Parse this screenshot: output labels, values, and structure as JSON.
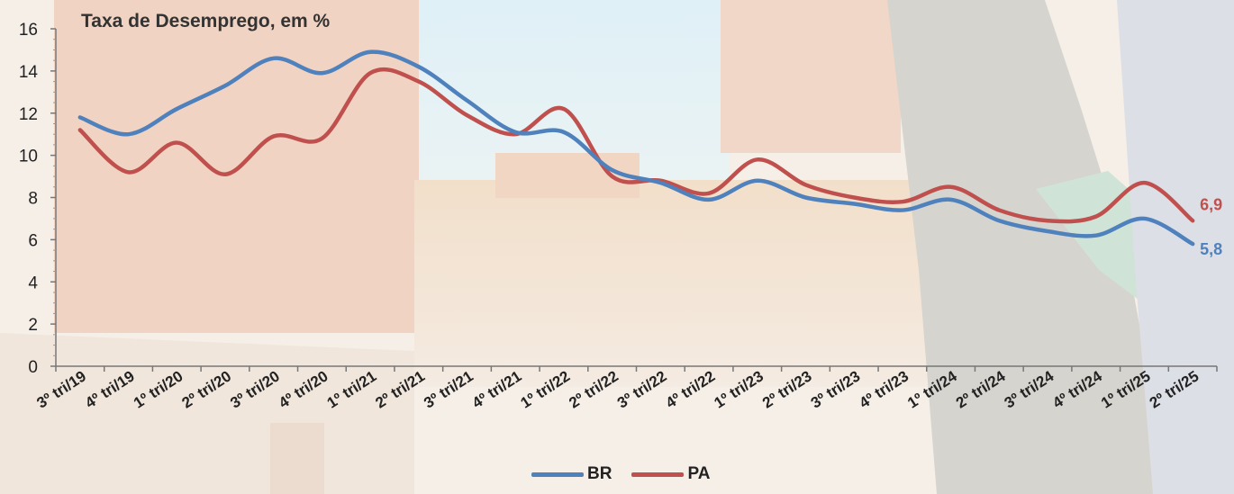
{
  "chart_data": {
    "type": "line",
    "title": "Taxa de Desemprego, em %",
    "xlabel": "",
    "ylabel": "",
    "ylim": [
      0,
      16
    ],
    "yticks": [
      0,
      2,
      4,
      6,
      8,
      10,
      12,
      14,
      16
    ],
    "grid": false,
    "legend_position": "bottom",
    "categories": [
      "3º tri/19",
      "4º tri/19",
      "1º tri/20",
      "2º tri/20",
      "3º tri/20",
      "4º tri/20",
      "1º tri/21",
      "2º tri/21",
      "3º tri/21",
      "4º tri/21",
      "1º tri/22",
      "2º tri/22",
      "3º tri/22",
      "4º tri/22",
      "1º tri/23",
      "2º tri/23",
      "3º tri/23",
      "4º tri/23",
      "1º tri/24",
      "2º tri/24",
      "3º tri/24",
      "4º tri/24",
      "1º tri/25",
      "2º tri/25"
    ],
    "series": [
      {
        "name": "BR",
        "color": "#4f81bd",
        "values": [
          11.8,
          11.0,
          12.2,
          13.3,
          14.6,
          13.9,
          14.9,
          14.2,
          12.6,
          11.1,
          11.1,
          9.3,
          8.7,
          7.9,
          8.8,
          8.0,
          7.7,
          7.4,
          7.9,
          6.9,
          6.4,
          6.2,
          7.0,
          5.8
        ],
        "end_label": "5,8"
      },
      {
        "name": "PA",
        "color": "#c0504d",
        "values": [
          11.2,
          9.2,
          10.6,
          9.1,
          10.9,
          10.8,
          13.9,
          13.5,
          11.9,
          11.0,
          12.2,
          9.0,
          8.8,
          8.2,
          9.8,
          8.6,
          8.0,
          7.8,
          8.5,
          7.4,
          6.9,
          7.1,
          8.7,
          6.9
        ],
        "end_label": "6,9"
      }
    ]
  }
}
